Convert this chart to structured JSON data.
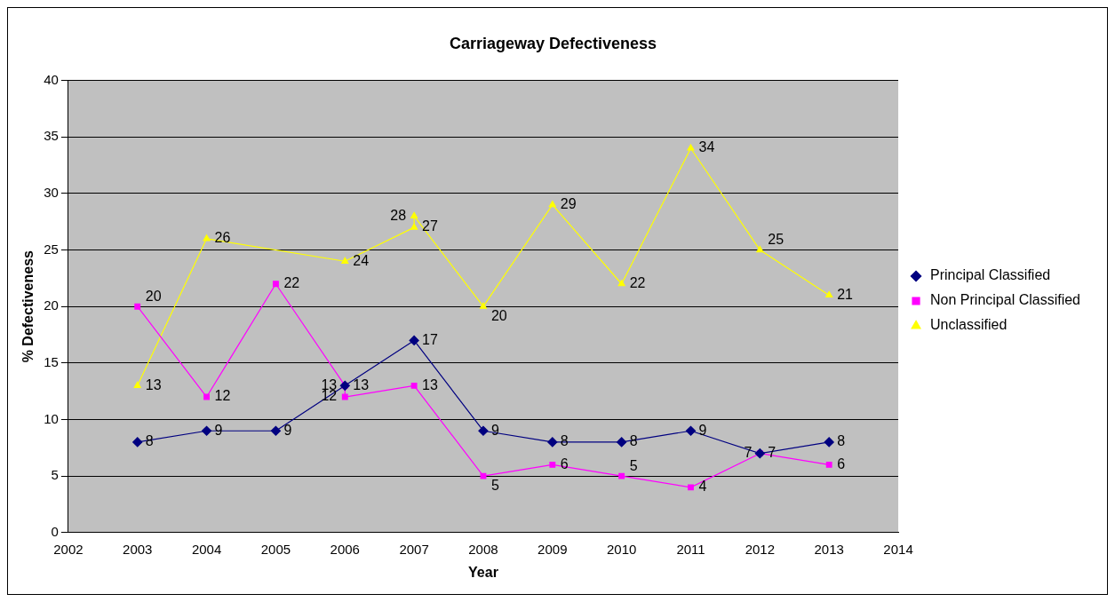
{
  "chart_data": {
    "type": "line",
    "title": "Carriageway Defectiveness",
    "xlabel": "Year",
    "ylabel": "% Defectiveness",
    "x": [
      2003,
      2004,
      2005,
      2006,
      2007,
      2008,
      2009,
      2010,
      2011,
      2012,
      2013
    ],
    "series": [
      {
        "name": "Principal Classified",
        "color": "#000080",
        "marker": "diamond",
        "values": [
          8,
          9,
          9,
          13,
          17,
          9,
          8,
          8,
          9,
          7,
          8
        ]
      },
      {
        "name": "Non Principal Classified",
        "color": "#ff00ff",
        "marker": "square",
        "x": [
          2003,
          2004,
          2005,
          2006,
          2006,
          2007,
          2008,
          2009,
          2010,
          2011,
          2012,
          2013
        ],
        "values": [
          20,
          12,
          22,
          13,
          12,
          13,
          5,
          6,
          5,
          4,
          7,
          6
        ]
      },
      {
        "name": "Unclassified",
        "color": "#ffff00",
        "marker": "triangle",
        "x": [
          2003,
          2004,
          2006,
          2007,
          2007,
          2008,
          2009,
          2010,
          2011,
          2012,
          2013
        ],
        "values": [
          13,
          26,
          24,
          27,
          28,
          20,
          29,
          22,
          34,
          25,
          21
        ]
      }
    ],
    "xlim": [
      2002,
      2014
    ],
    "xticks": [
      2002,
      2003,
      2004,
      2005,
      2006,
      2007,
      2008,
      2009,
      2010,
      2011,
      2012,
      2013,
      2014
    ],
    "ylim": [
      0,
      40
    ],
    "yticks": [
      0,
      5,
      10,
      15,
      20,
      25,
      30,
      35,
      40
    ],
    "grid": "y",
    "legend": "right",
    "data_labels": true,
    "line_style": "solid"
  }
}
